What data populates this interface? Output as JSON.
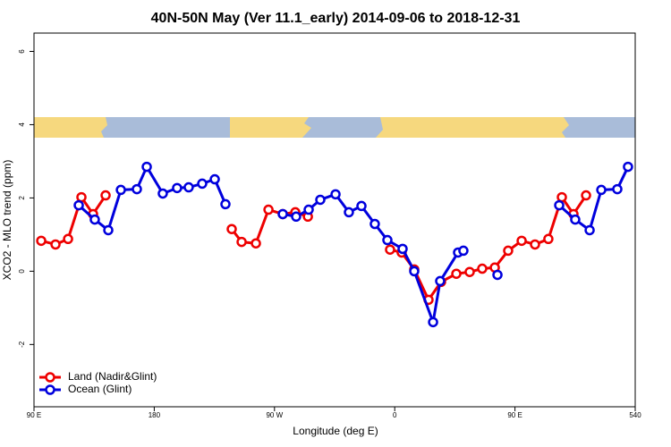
{
  "chart_data": {
    "type": "line",
    "title": "40N-50N May (Ver 11.1_early)   2014-09-06 to 2018-12-31",
    "xlabel": "Longitude (deg E)",
    "ylabel": "XCO2 - MLO trend (ppm)",
    "xlim": [
      90,
      540
    ],
    "xticks": [
      {
        "value": 90,
        "label": "90 E"
      },
      180,
      {
        "value": 270,
        "label": "90 W"
      },
      {
        "value": 360,
        "label": "0"
      },
      {
        "value": 450,
        "label": "90 E"
      },
      540
    ],
    "ylim": [
      -3.7,
      6.5
    ],
    "yticks": [
      -2,
      0,
      2,
      4,
      6
    ],
    "legend": "bottom-left",
    "series": [
      {
        "name": "Land (Nadir&Glint)",
        "color": "#ee0000",
        "x": [
          95.4,
          106.1,
          115.5,
          125.5,
          134.2,
          143.6,
          null,
          238.0,
          245.4,
          256.1,
          265.5,
          276.2,
          285.6,
          295.0,
          null,
          356.5,
          365.2,
          374.6,
          385.3,
          394.7,
          406.1,
          416.1,
          425.5,
          434.9,
          444.9,
          455.0,
          465.0,
          475.0,
          485.1,
          493.8,
          503.2
        ],
        "values": [
          0.83,
          0.73,
          0.88,
          2.02,
          1.56,
          2.07,
          null,
          1.15,
          0.8,
          0.76,
          1.68,
          1.56,
          1.61,
          1.49,
          null,
          0.59,
          0.51,
          0.05,
          -0.78,
          -0.29,
          -0.07,
          -0.02,
          0.07,
          0.1,
          0.56,
          0.83,
          0.73,
          0.88,
          2.02,
          1.56,
          2.07
        ]
      },
      {
        "name": "Ocean (Glint)",
        "color": "#0000dd",
        "x": [
          123.5,
          135.5,
          145.6,
          155.0,
          167.0,
          174.4,
          186.4,
          197.1,
          205.8,
          215.9,
          225.3,
          233.3,
          null,
          276.2,
          286.2,
          295.6,
          304.3,
          315.7,
          325.7,
          335.1,
          345.1,
          354.5,
          365.9,
          374.6,
          388.7,
          394.0,
          407.4,
          411.4,
          null,
          436.9,
          null,
          483.1,
          495.1,
          505.9,
          514.6,
          526.6,
          534.6
        ],
        "values": [
          1.8,
          1.41,
          1.12,
          2.22,
          2.24,
          2.85,
          2.12,
          2.27,
          2.29,
          2.39,
          2.51,
          1.83,
          null,
          1.56,
          1.49,
          1.68,
          1.95,
          2.1,
          1.61,
          1.78,
          1.29,
          0.85,
          0.61,
          0.0,
          -1.39,
          -0.27,
          0.51,
          0.56,
          null,
          -0.1,
          null,
          1.8,
          1.41,
          1.12,
          2.22,
          2.24,
          2.85
        ]
      }
    ]
  }
}
